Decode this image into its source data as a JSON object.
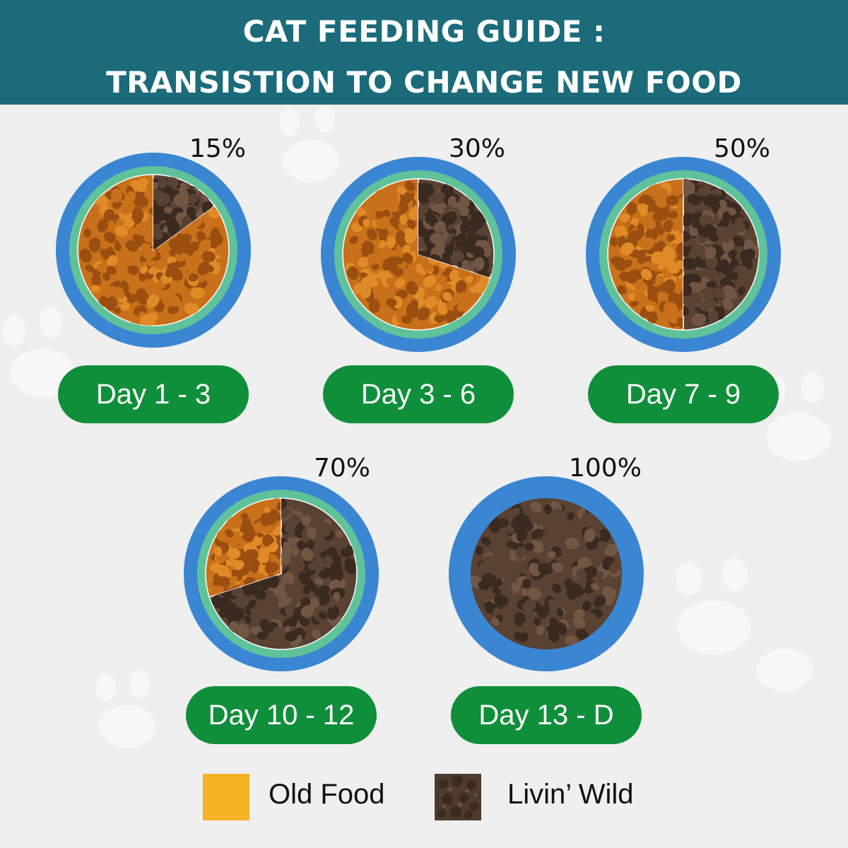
{
  "header": {
    "title_line1": "CAT FEEDING GUIDE :",
    "title_line2": "TRANSISTION TO CHANGE NEW FOOD",
    "background": "#1b6b7b"
  },
  "colors": {
    "bowl_rim": "#3a86d2",
    "bowl_inner": "#5fc29a",
    "old_food": "#c9701a",
    "livin_wild": "#5a4233",
    "pill": "#108f3b"
  },
  "chart_data": {
    "type": "pie",
    "series": [
      {
        "label": "Day 1 - 3",
        "percent_label": "15%",
        "value": 15
      },
      {
        "label": "Day 3 - 6",
        "percent_label": "30%",
        "value": 30
      },
      {
        "label": "Day 7 - 9",
        "percent_label": "50%",
        "value": 50
      },
      {
        "label": "Day 10 - 12",
        "percent_label": "70%",
        "value": 70
      },
      {
        "label": "Day 13 - D",
        "percent_label": "100%",
        "value": 100
      }
    ]
  },
  "legend": [
    {
      "label": "Old Food",
      "color": "#f5b225"
    },
    {
      "label": "Livin’ Wild",
      "color": "#4e3b2e"
    }
  ]
}
